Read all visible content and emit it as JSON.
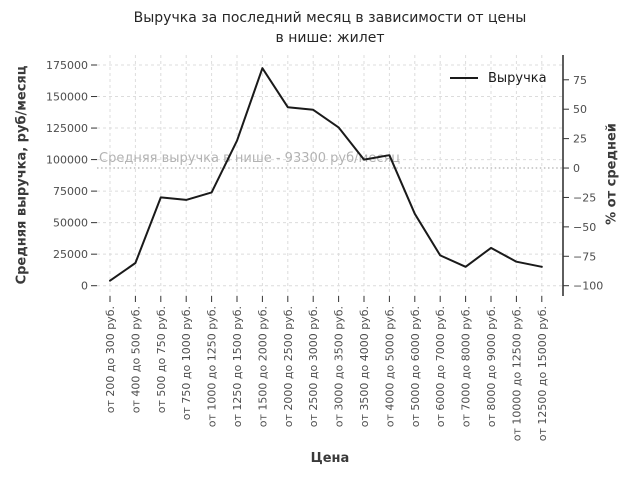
{
  "chart_data": {
    "type": "line",
    "title_lines": [
      "Выручка за последний месяц в зависимости от цены",
      "в нише: жилет"
    ],
    "xlabel": "Цена",
    "ylabel_left": "Средняя выручка, руб/месяц",
    "ylabel_right": "% от средней",
    "categories": [
      "от 200 до 300 руб.",
      "от 400 до 500 руб.",
      "от 500 до 750 руб.",
      "от 750 до 1000 руб.",
      "от 1000 до 1250 руб.",
      "от 1250 до 1500 руб.",
      "от 1500 до 2000 руб.",
      "от 2000 до 2500 руб.",
      "от 2500 до 3000 руб.",
      "от 3000 до 3500 руб.",
      "от 3500 до 4000 руб.",
      "от 4000 до 5000 руб.",
      "от 5000 до 6000 руб.",
      "от 6000 до 7000 руб.",
      "от 7000 до 8000 руб.",
      "от 8000 до 9000 руб.",
      "от 10000 до 12500 руб.",
      "от 12500 до 15000 руб."
    ],
    "series": [
      {
        "name": "Выручка",
        "values": [
          4000,
          18000,
          70000,
          68000,
          74000,
          115000,
          172500,
          141500,
          139500,
          125500,
          100000,
          103500,
          57000,
          24000,
          15000,
          30000,
          19000,
          15000
        ]
      }
    ],
    "yticks_left": [
      0,
      25000,
      50000,
      75000,
      100000,
      125000,
      150000,
      175000
    ],
    "yticks_right_percent": [
      75,
      50,
      25,
      0,
      -25,
      -50,
      -75,
      -100
    ],
    "ylim_left": [
      0,
      175000
    ],
    "average_line": {
      "value": 93300,
      "label": "Средняя выручка в нише - 93300 руб/месяц"
    },
    "legend": {
      "entries": [
        "Выручка"
      ],
      "position": "upper right"
    },
    "grid": true,
    "colors": {
      "line": "#1a1a1a",
      "grid": "#dcdcdc",
      "average_line": "#b0b0b0",
      "annotation_text": "#b3b3b3",
      "tick_text": "#4d4d4d",
      "axis_spine": "#1a1a1a"
    }
  }
}
